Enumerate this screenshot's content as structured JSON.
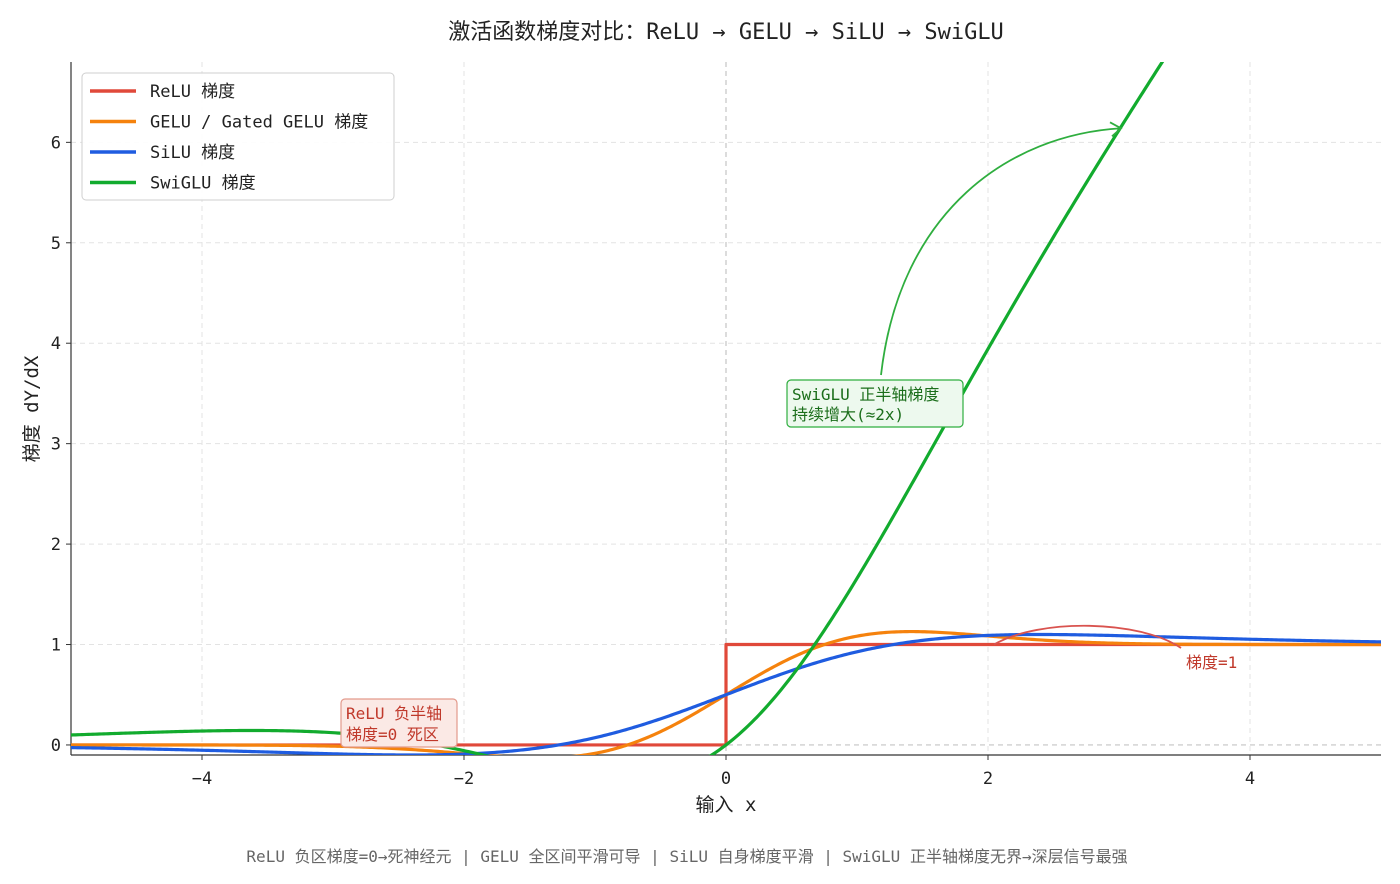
{
  "chart_data": {
    "type": "line",
    "title": "激活函数梯度对比：ReLU → GELU → SiLU → SwiGLU",
    "xlabel": "输入 x",
    "ylabel": "梯度 dY/dX",
    "xlim": [
      -5,
      5
    ],
    "ylim": [
      -0.1,
      6.8
    ],
    "xticks": [
      -4,
      -2,
      0,
      2,
      4
    ],
    "xtick_labels": [
      "−4",
      "−2",
      "0",
      "2",
      "4"
    ],
    "yticks": [
      0,
      1,
      2,
      3,
      4,
      5,
      6
    ],
    "ytick_labels": [
      "0",
      "1",
      "2",
      "3",
      "4",
      "5",
      "6"
    ],
    "grid": true,
    "legend_position": "top-left",
    "series": [
      {
        "name": "ReLU 梯度",
        "color": "#e0493a",
        "function": "relu_grad",
        "x": [
          -5,
          -2,
          -0.01,
          0,
          2,
          5
        ],
        "values": [
          0,
          0,
          0,
          1,
          1,
          1
        ]
      },
      {
        "name": "GELU / Gated GELU 梯度",
        "color": "#f5820d",
        "function": "gelu_grad",
        "x": [
          -5,
          -3,
          -2,
          -1,
          -0.5,
          0,
          0.5,
          1,
          1.4,
          2,
          3,
          5
        ],
        "values": [
          0,
          -0.01,
          -0.09,
          -0.08,
          0.13,
          0.5,
          0.87,
          1.08,
          1.13,
          1.09,
          1.01,
          1.0
        ]
      },
      {
        "name": "SiLU 梯度",
        "color": "#1f5ce0",
        "function": "silu_grad",
        "x": [
          -5,
          -4,
          -3,
          -2,
          -1,
          0,
          1,
          2,
          2.4,
          3,
          4,
          5
        ],
        "values": [
          -0.03,
          -0.05,
          -0.09,
          -0.09,
          0.07,
          0.5,
          0.93,
          1.09,
          1.1,
          1.09,
          1.05,
          1.03
        ]
      },
      {
        "name": "SwiGLU 梯度",
        "color": "#12ab2e",
        "function": "swiglu_grad",
        "x": [
          -5,
          -3.6,
          -2,
          -1,
          0,
          0.5,
          1,
          2,
          3,
          3.1
        ],
        "values": [
          0.1,
          0.15,
          -0.06,
          -0.32,
          0,
          0.72,
          1.85,
          4.18,
          6.17,
          6.8
        ]
      }
    ],
    "annotations": [
      {
        "text_lines": [
          "ReLU 负半轴",
          "梯度=0 死区"
        ],
        "color": "#c0392b",
        "bg": "#fbe9e5",
        "border": "#e39a8c"
      },
      {
        "text_lines": [
          "SwiGLU 正半轴梯度",
          "持续增大(≈2x)"
        ],
        "color": "#1b6e1b",
        "bg": "#edf9ee",
        "border": "#2fae3f",
        "arrow_to": [
          3.0,
          6.15
        ]
      },
      {
        "text_lines": [
          "梯度=1"
        ],
        "color": "#c0392b",
        "arrow_to": [
          2.0,
          1.0
        ]
      }
    ]
  },
  "footer": "ReLU 负区梯度=0→死神经元 | GELU 全区间平滑可导 | SiLU 自身梯度平滑 | SwiGLU 正半轴梯度无界→深层信号最强"
}
